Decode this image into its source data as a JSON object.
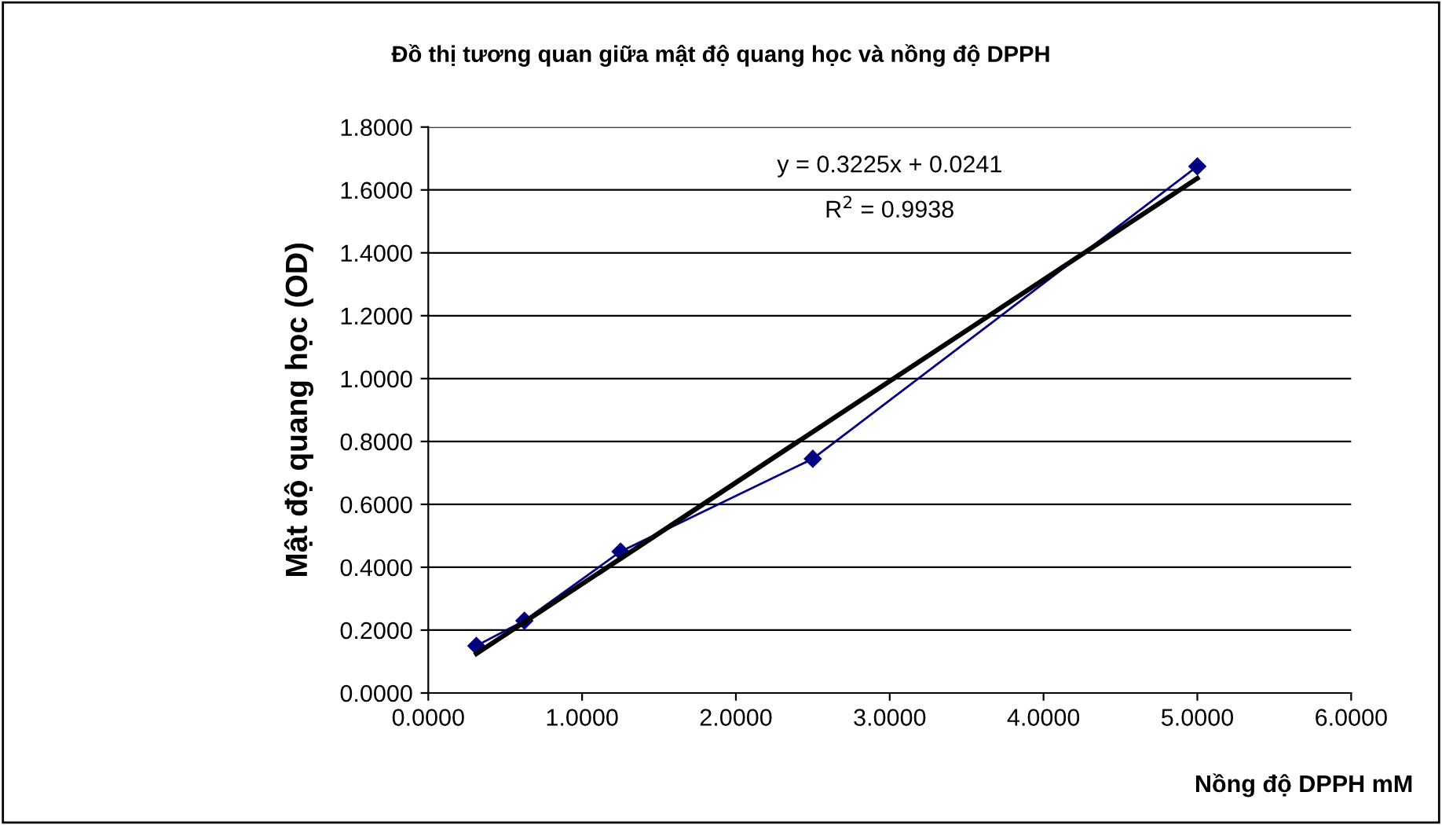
{
  "chart_data": {
    "type": "line",
    "title": "Đồ thị tương quan giữa mật độ quang học và nồng độ DPPH",
    "xlabel": "Nồng độ DPPH mM",
    "ylabel": "Mật độ quang học (OD)",
    "annotations": [
      "y = 0.3225x + 0.0241",
      "R$^{2}$ = 0.9938"
    ],
    "series": [
      {
        "color": "#000080",
        "marker": "diamond",
        "x": [
          0.3125,
          0.625,
          1.25,
          2.5,
          5.0
        ],
        "values": [
          0.15,
          0.23,
          0.45,
          0.745,
          1.675
        ]
      },
      {
        "color": "#000000",
        "marker": "none",
        "x": [
          0.3125,
          5.0
        ],
        "values": [
          0.125,
          1.637
        ]
      }
    ],
    "xlim": [
      0,
      6
    ],
    "ylim": [
      0,
      1.8
    ],
    "xticks": [
      {
        "value": 0,
        "label": "0.0000"
      },
      {
        "value": 1,
        "label": "1.0000"
      },
      {
        "value": 2,
        "label": "2.0000"
      },
      {
        "value": 3,
        "label": "3.0000"
      },
      {
        "value": 4,
        "label": "4.0000"
      },
      {
        "value": 5,
        "label": "5.0000"
      },
      {
        "value": 6,
        "label": "6.0000"
      }
    ],
    "yticks": [
      {
        "value": 0,
        "label": "0.0000"
      },
      {
        "value": 0.2,
        "label": "0.2000"
      },
      {
        "value": 0.4,
        "label": "0.4000"
      },
      {
        "value": 0.6,
        "label": "0.6000"
      },
      {
        "value": 0.8,
        "label": "0.8000"
      },
      {
        "value": 1.0,
        "label": "1.0000"
      },
      {
        "value": 1.2,
        "label": "1.2000"
      },
      {
        "value": 1.4,
        "label": "1.4000"
      },
      {
        "value": 1.6,
        "label": "1.6000"
      },
      {
        "value": 1.8,
        "label": "1.8000"
      }
    ],
    "grid": "y"
  }
}
